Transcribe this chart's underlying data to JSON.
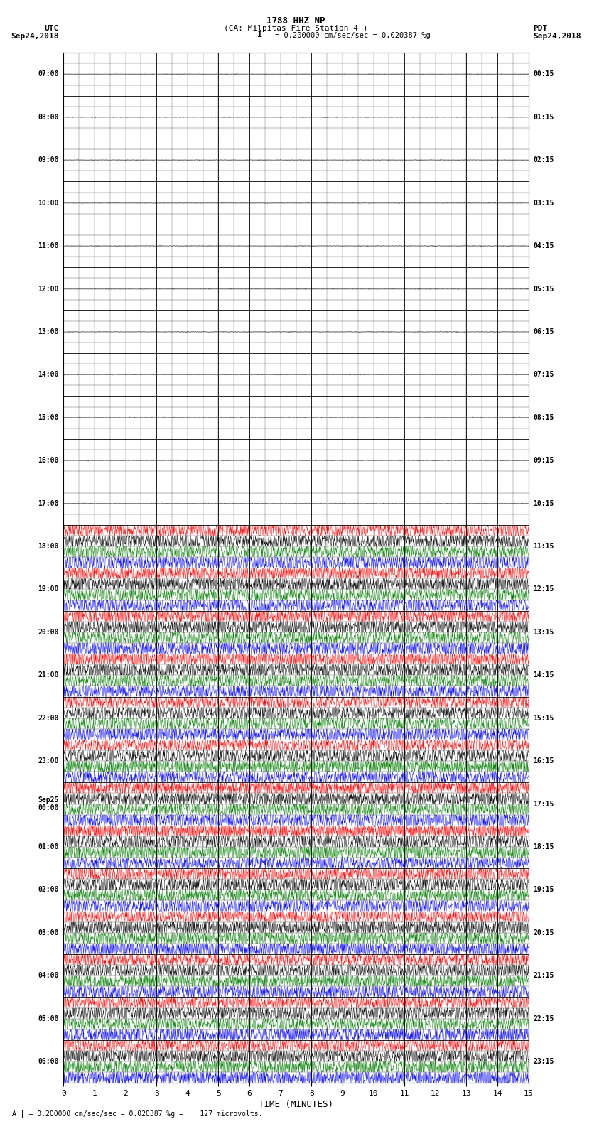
{
  "title_line1": "1788 HHZ NP",
  "title_line2": "(CA: Milpitas Fire Station 4 )",
  "scale_text": "I = 0.200000 cm/sec/sec = 0.020387 %g",
  "footer_text": "A [ = 0.200000 cm/sec/sec = 0.020387 %g =    127 microvolts.",
  "utc_label": "UTC",
  "utc_date": "Sep24,2018",
  "pdt_label": "PDT",
  "pdt_date": "Sep24,2018",
  "xlabel": "TIME (MINUTES)",
  "left_times_utc": [
    "07:00",
    "08:00",
    "09:00",
    "10:00",
    "11:00",
    "12:00",
    "13:00",
    "14:00",
    "15:00",
    "16:00",
    "17:00",
    "18:00",
    "19:00",
    "20:00",
    "21:00",
    "22:00",
    "23:00",
    "Sep25\n00:00",
    "01:00",
    "02:00",
    "03:00",
    "04:00",
    "05:00",
    "06:00"
  ],
  "right_times_pdt": [
    "00:15",
    "01:15",
    "02:15",
    "03:15",
    "04:15",
    "05:15",
    "06:15",
    "07:15",
    "08:15",
    "09:15",
    "10:15",
    "11:15",
    "12:15",
    "13:15",
    "14:15",
    "15:15",
    "16:15",
    "17:15",
    "18:15",
    "19:15",
    "20:15",
    "21:15",
    "22:15",
    "23:15"
  ],
  "num_rows": 24,
  "xmin": 0,
  "xmax": 15,
  "background_color": "#ffffff",
  "traces_per_row": 4,
  "quiet_rows": 11,
  "fig_width": 8.5,
  "fig_height": 16.13,
  "dpi": 100
}
